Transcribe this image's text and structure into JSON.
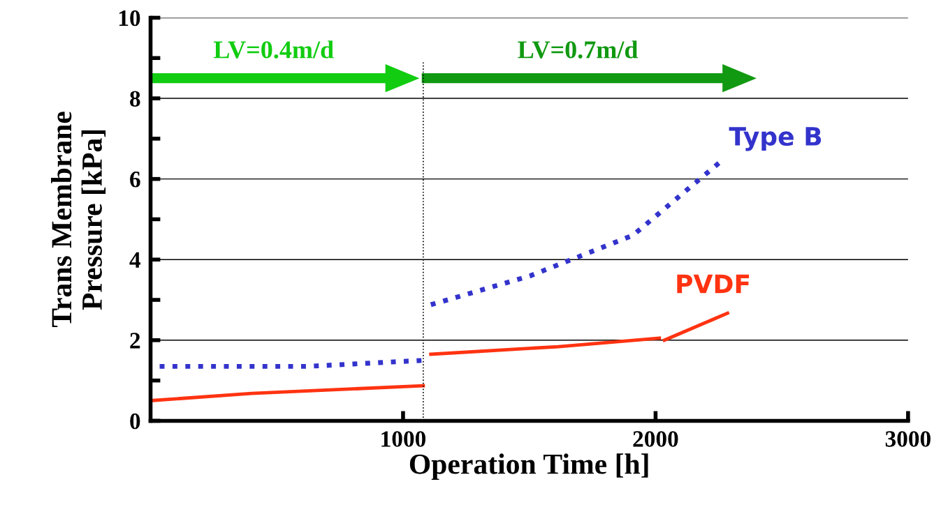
{
  "chart_data": {
    "type": "line",
    "xlabel": "Operation Time [h]",
    "ylabel": "Trans Membrane\nPressure [kPa]",
    "xlim": [
      0,
      3000
    ],
    "xticks": [
      1000,
      2000,
      3000
    ],
    "ylim": [
      0,
      10
    ],
    "yticks": [
      0,
      2,
      4,
      6,
      8,
      10
    ],
    "grid": "y",
    "legend": false,
    "series": [
      {
        "name": "Type B",
        "color": "#3333cc",
        "line_style": "dotted",
        "x": [
          36,
          620,
          1080,
          null,
          1110,
          1505,
          1910,
          2265
        ],
        "values": [
          1.35,
          1.35,
          1.5,
          null,
          2.88,
          3.6,
          4.6,
          6.47
        ]
      },
      {
        "name": "PVDF",
        "color": "#ff3311",
        "line_style": "solid",
        "x": [
          0,
          400,
          1080,
          null,
          1110,
          1615,
          2015,
          null,
          2035,
          2285
        ],
        "values": [
          0.5,
          0.68,
          0.87,
          null,
          1.65,
          1.84,
          2.05,
          null,
          2.0,
          2.67
        ]
      }
    ],
    "ref_lines": [
      {
        "axis": "x",
        "value": 1080,
        "color": "#000000",
        "line_style": "dotted"
      }
    ],
    "annotations": [
      "LV=0.4m/d",
      "LV=0.7m/d"
    ]
  }
}
